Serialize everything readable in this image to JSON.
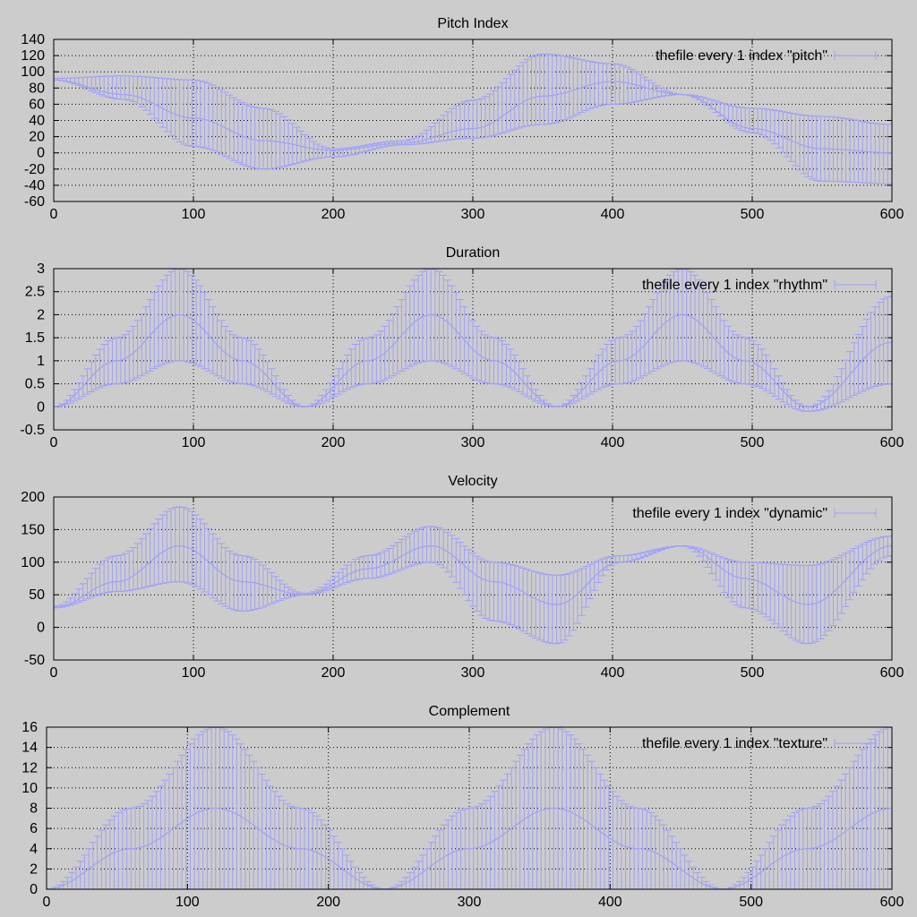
{
  "figure": {
    "background": "#cccccc",
    "series_color": "#a0a0f8"
  },
  "chart_data": [
    {
      "type": "errorbar",
      "title": "Pitch Index",
      "xlim": [
        0,
        600
      ],
      "ylim": [
        -60,
        140
      ],
      "x_ticks": [
        0,
        100,
        200,
        300,
        400,
        500,
        600
      ],
      "y_ticks": [
        -60,
        -40,
        -20,
        0,
        20,
        40,
        60,
        80,
        100,
        120,
        140
      ],
      "grid": true,
      "legend_position": "top-right",
      "series": [
        {
          "name": "thefile every 1 index \"pitch\"",
          "x": [
            0,
            50,
            100,
            150,
            200,
            250,
            300,
            350,
            400,
            450,
            500,
            550,
            600
          ],
          "y": [
            90,
            72,
            43,
            15,
            3,
            12,
            30,
            70,
            88,
            72,
            30,
            5,
            0
          ],
          "y_low": [
            90,
            66,
            8,
            -20,
            -5,
            10,
            18,
            35,
            60,
            72,
            25,
            -35,
            -38
          ],
          "y_high": [
            92,
            95,
            90,
            55,
            5,
            15,
            65,
            122,
            110,
            72,
            55,
            45,
            35
          ]
        }
      ]
    },
    {
      "type": "errorbar",
      "title": "Duration",
      "xlim": [
        0,
        600
      ],
      "ylim": [
        -0.5,
        3
      ],
      "x_ticks": [
        0,
        100,
        200,
        300,
        400,
        500,
        600
      ],
      "y_ticks": [
        -0.5,
        0,
        0.5,
        1,
        1.5,
        2,
        2.5,
        3
      ],
      "grid": true,
      "legend_position": "top-right",
      "series": [
        {
          "name": "thefile every 1 index \"rhythm\"",
          "x": [
            0,
            45,
            90,
            135,
            180,
            225,
            270,
            315,
            360,
            405,
            450,
            495,
            540,
            600
          ],
          "y": [
            0,
            1.0,
            2.0,
            1.0,
            0,
            1.0,
            2.0,
            1.0,
            0,
            1.0,
            2.0,
            1.0,
            0,
            1.4
          ],
          "y_low": [
            0,
            0.5,
            1.0,
            0.5,
            0,
            0.5,
            1.0,
            0.5,
            0,
            0.5,
            1.0,
            0.5,
            -0.1,
            0.5
          ],
          "y_high": [
            0,
            1.5,
            3.0,
            1.5,
            0,
            1.5,
            3.0,
            1.5,
            0,
            1.5,
            3.0,
            1.5,
            0,
            2.4
          ]
        }
      ]
    },
    {
      "type": "errorbar",
      "title": "Velocity",
      "xlim": [
        0,
        600
      ],
      "ylim": [
        -50,
        200
      ],
      "x_ticks": [
        0,
        100,
        200,
        300,
        400,
        500,
        600
      ],
      "y_ticks": [
        -50,
        0,
        50,
        100,
        150,
        200
      ],
      "grid": true,
      "legend_position": "top-right",
      "series": [
        {
          "name": "thefile every 1 index \"dynamic\"",
          "x": [
            0,
            45,
            90,
            135,
            180,
            225,
            270,
            315,
            360,
            405,
            450,
            495,
            540,
            600
          ],
          "y": [
            30,
            70,
            125,
            70,
            50,
            90,
            125,
            70,
            35,
            100,
            125,
            75,
            35,
            125
          ],
          "y_low": [
            30,
            55,
            70,
            25,
            50,
            75,
            100,
            10,
            -25,
            100,
            125,
            30,
            -25,
            110
          ],
          "y_high": [
            32,
            110,
            185,
            110,
            52,
            110,
            155,
            100,
            80,
            110,
            125,
            100,
            95,
            140
          ]
        }
      ]
    },
    {
      "type": "errorbar",
      "title": "Complement",
      "xlim": [
        0,
        600
      ],
      "ylim": [
        0,
        16
      ],
      "x_ticks": [
        0,
        100,
        200,
        300,
        400,
        500,
        600
      ],
      "y_ticks": [
        0,
        2,
        4,
        6,
        8,
        10,
        12,
        14,
        16
      ],
      "grid": true,
      "legend_position": "top-right",
      "series": [
        {
          "name": "thefile every 1 index \"texture\"",
          "x": [
            0,
            60,
            120,
            180,
            240,
            300,
            360,
            420,
            480,
            540,
            600
          ],
          "y": [
            0,
            4,
            8,
            4,
            0,
            4,
            8,
            4,
            0,
            4,
            8
          ],
          "y_low": [
            0,
            0,
            0,
            0,
            0,
            0,
            0,
            0,
            0,
            0,
            0
          ],
          "y_high": [
            0,
            8,
            16,
            8,
            0,
            8,
            16,
            8,
            0,
            8,
            16
          ]
        }
      ]
    }
  ]
}
